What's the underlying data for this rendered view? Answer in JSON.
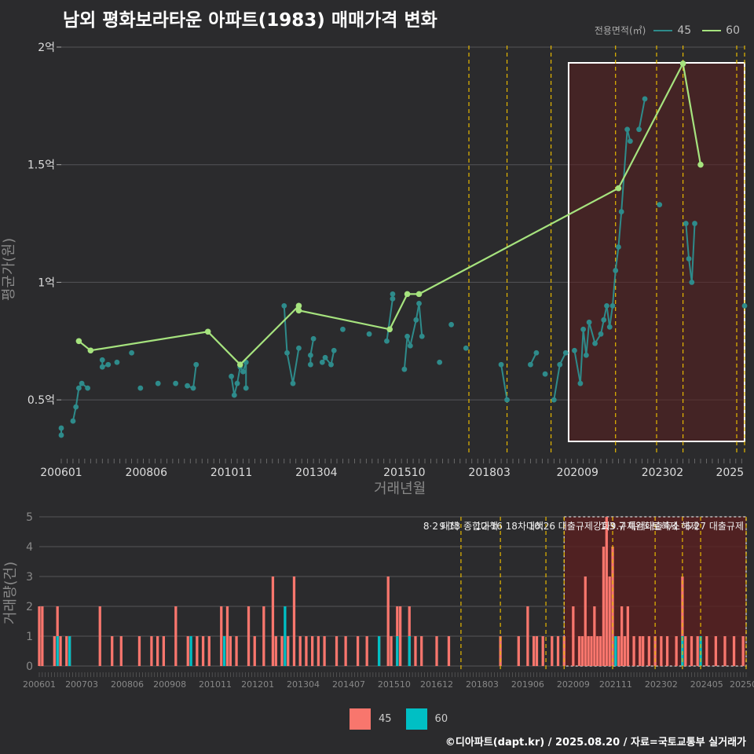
{
  "title": "남외 평화보라타운 아파트(1983) 매매가격 변화",
  "footer": "©디아파트(dapt.kr) / 2025.08.20 / 자료=국토교통부 실거래가",
  "legend": {
    "title": "전용면적(㎡)",
    "items": [
      {
        "label": "45",
        "color": "#2e8b8b"
      },
      {
        "label": "60",
        "color": "#a6e37e"
      }
    ]
  },
  "volume_legend": [
    {
      "label": "45",
      "color": "#f8766d"
    },
    {
      "label": "60",
      "color": "#00bfc4"
    }
  ],
  "colors": {
    "s45_line": "#2e8b8b",
    "s60": "#a6e37e",
    "bar45": "#f8766d",
    "bar60": "#00bfc4",
    "policy_line": "#e6b800",
    "highlight": "#5a1f1f"
  },
  "chart_data": [
    {
      "type": "line",
      "title": "남외 평화보라타운 아파트(1983) 매매가격 변화",
      "xlabel": "거래년월",
      "ylabel": "평균가(원)",
      "x_range": [
        "2006-01",
        "2025-06"
      ],
      "ylim": [
        0.27,
        2.05
      ],
      "x_ticks": [
        "200601",
        "200806",
        "201011",
        "201304",
        "201510",
        "201803",
        "202009",
        "202302",
        "2025"
      ],
      "y_ticks": [
        {
          "v": 0.5,
          "label": "0.5억"
        },
        {
          "v": 1,
          "label": "1억"
        },
        {
          "v": 1.5,
          "label": "1.5억"
        },
        {
          "v": 2,
          "label": "2억"
        }
      ],
      "policy_dates": [
        "2017-08",
        "2018-09",
        "2019-12",
        "2021-10",
        "2022-12",
        "2023-09",
        "2025-06",
        "2025-06"
      ],
      "highlight_range": [
        "2020-06",
        "2025-06"
      ],
      "series": [
        {
          "name": "45",
          "points": [
            [
              "2006-01",
              0.35
            ],
            [
              "2006-01",
              0.38
            ],
            [
              "2006-05",
              0.41
            ],
            [
              "2006-06",
              0.47
            ],
            [
              "2006-07",
              0.55
            ],
            [
              "2006-08",
              0.57
            ],
            [
              "2006-10",
              0.55
            ],
            [
              "2007-03",
              0.67
            ],
            [
              "2007-03",
              0.64
            ],
            [
              "2007-05",
              0.65
            ],
            [
              "2007-08",
              0.66
            ],
            [
              "2008-01",
              0.7
            ],
            [
              "2008-04",
              0.55
            ],
            [
              "2008-10",
              0.57
            ],
            [
              "2009-04",
              0.57
            ],
            [
              "2009-08",
              0.56
            ],
            [
              "2009-10",
              0.55
            ],
            [
              "2009-11",
              0.65
            ],
            [
              "2010-11",
              0.6
            ],
            [
              "2010-12",
              0.52
            ],
            [
              "2011-01",
              0.57
            ],
            [
              "2011-02",
              0.64
            ],
            [
              "2011-03",
              0.62
            ],
            [
              "2011-04",
              0.66
            ],
            [
              "2011-04",
              0.55
            ],
            [
              "2012-05",
              0.9
            ],
            [
              "2012-06",
              0.7
            ],
            [
              "2012-08",
              0.57
            ],
            [
              "2012-10",
              0.72
            ],
            [
              "2013-02",
              0.65
            ],
            [
              "2013-02",
              0.69
            ],
            [
              "2013-03",
              0.76
            ],
            [
              "2013-06",
              0.66
            ],
            [
              "2013-07",
              0.68
            ],
            [
              "2013-09",
              0.65
            ],
            [
              "2013-10",
              0.71
            ],
            [
              "2014-01",
              0.8
            ],
            [
              "2014-10",
              0.78
            ],
            [
              "2015-04",
              0.75
            ],
            [
              "2015-06",
              0.93
            ],
            [
              "2015-06",
              0.95
            ],
            [
              "2015-10",
              0.63
            ],
            [
              "2015-11",
              0.77
            ],
            [
              "2015-12",
              0.73
            ],
            [
              "2016-02",
              0.84
            ],
            [
              "2016-03",
              0.91
            ],
            [
              "2016-04",
              0.77
            ],
            [
              "2016-10",
              0.66
            ],
            [
              "2017-02",
              0.82
            ],
            [
              "2017-07",
              0.72
            ],
            [
              "2018-07",
              0.65
            ],
            [
              "2018-09",
              0.5
            ],
            [
              "2019-05",
              0.65
            ],
            [
              "2019-07",
              0.7
            ],
            [
              "2019-10",
              0.61
            ],
            [
              "2020-01",
              0.5
            ],
            [
              "2020-03",
              0.65
            ],
            [
              "2020-05",
              0.7
            ],
            [
              "2020-08",
              0.71
            ],
            [
              "2020-10",
              0.57
            ],
            [
              "2020-11",
              0.8
            ],
            [
              "2020-12",
              0.69
            ],
            [
              "2021-01",
              0.83
            ],
            [
              "2021-03",
              0.74
            ],
            [
              "2021-05",
              0.78
            ],
            [
              "2021-06",
              0.84
            ],
            [
              "2021-07",
              0.9
            ],
            [
              "2021-08",
              0.81
            ],
            [
              "2021-09",
              0.9
            ],
            [
              "2021-10",
              1.05
            ],
            [
              "2021-11",
              1.15
            ],
            [
              "2021-12",
              1.3
            ],
            [
              "2022-02",
              1.65
            ],
            [
              "2022-03",
              1.6
            ],
            [
              "2022-06",
              1.65
            ],
            [
              "2022-08",
              1.78
            ],
            [
              "2023-01",
              1.33
            ],
            [
              "2023-10",
              1.25
            ],
            [
              "2023-11",
              1.1
            ],
            [
              "2023-12",
              1.0
            ],
            [
              "2024-01",
              1.25
            ],
            [
              "2025-06",
              0.9
            ]
          ]
        },
        {
          "name": "60",
          "points": [
            [
              "2006-07",
              0.75
            ],
            [
              "2006-11",
              0.71
            ],
            [
              "2010-03",
              0.79
            ],
            [
              "2011-02",
              0.65
            ],
            [
              "2012-10",
              0.9
            ],
            [
              "2012-10",
              0.88
            ],
            [
              "2015-05",
              0.8
            ],
            [
              "2015-11",
              0.95
            ],
            [
              "2016-03",
              0.95
            ],
            [
              "2021-11",
              1.4
            ],
            [
              "2023-09",
              1.93
            ],
            [
              "2024-03",
              1.5
            ]
          ]
        }
      ]
    },
    {
      "type": "bar",
      "title": "",
      "xlabel": "",
      "ylabel": "거래량(건)",
      "ylim": [
        0,
        5
      ],
      "y_ticks": [
        0,
        1,
        2,
        3,
        4,
        5
      ],
      "x_ticks": [
        "200601",
        "200703",
        "200806",
        "200908",
        "201011",
        "201201",
        "201304",
        "201407",
        "201510",
        "201612",
        "201803",
        "201906",
        "202009",
        "202111",
        "202302",
        "202405",
        "202506"
      ],
      "highlight_range": [
        "2020-06",
        "2025-06"
      ],
      "policy_events": [
        {
          "date": "2017-08",
          "label": "8·2 대책"
        },
        {
          "date": "2018-09",
          "label": "9·13 종합대책"
        },
        {
          "date": "2019-12",
          "label": "12·16 18차대책"
        },
        {
          "date": "2020-06",
          "label": ""
        },
        {
          "date": "2021-10",
          "label": "10.26 대출규제강화"
        },
        {
          "date": "2022-12",
          "label": "1.3 규제완화"
        },
        {
          "date": "2023-09",
          "label": "9.7 특례대출축소"
        },
        {
          "date": "2024-03",
          "label": "토허제 해제"
        },
        {
          "date": "2025-06",
          "label": "6.27 대출규제"
        }
      ],
      "series": [
        {
          "name": "45",
          "values": [
            [
              "2006-01",
              2
            ],
            [
              "2006-02",
              2
            ],
            [
              "2006-06",
              1
            ],
            [
              "2006-07",
              2
            ],
            [
              "2006-08",
              1
            ],
            [
              "2006-10",
              1
            ],
            [
              "2006-11",
              1
            ],
            [
              "2007-09",
              2
            ],
            [
              "2008-01",
              1
            ],
            [
              "2008-04",
              1
            ],
            [
              "2008-10",
              1
            ],
            [
              "2009-02",
              1
            ],
            [
              "2009-04",
              1
            ],
            [
              "2009-06",
              1
            ],
            [
              "2009-10",
              2
            ],
            [
              "2010-02",
              1
            ],
            [
              "2010-05",
              1
            ],
            [
              "2010-07",
              1
            ],
            [
              "2010-09",
              1
            ],
            [
              "2011-01",
              2
            ],
            [
              "2011-03",
              2
            ],
            [
              "2011-04",
              1
            ],
            [
              "2011-06",
              1
            ],
            [
              "2011-10",
              2
            ],
            [
              "2011-12",
              1
            ],
            [
              "2012-03",
              2
            ],
            [
              "2012-06",
              3
            ],
            [
              "2012-07",
              1
            ],
            [
              "2012-09",
              1
            ],
            [
              "2012-11",
              1
            ],
            [
              "2013-01",
              3
            ],
            [
              "2013-03",
              1
            ],
            [
              "2013-05",
              1
            ],
            [
              "2013-07",
              1
            ],
            [
              "2013-09",
              1
            ],
            [
              "2013-11",
              1
            ],
            [
              "2014-03",
              1
            ],
            [
              "2014-06",
              1
            ],
            [
              "2014-10",
              1
            ],
            [
              "2015-01",
              1
            ],
            [
              "2015-05",
              1
            ],
            [
              "2015-08",
              3
            ],
            [
              "2015-09",
              1
            ],
            [
              "2015-11",
              2
            ],
            [
              "2015-12",
              2
            ],
            [
              "2016-03",
              2
            ],
            [
              "2016-05",
              1
            ],
            [
              "2016-07",
              1
            ],
            [
              "2016-12",
              1
            ],
            [
              "2017-04",
              1
            ],
            [
              "2018-09",
              1
            ],
            [
              "2019-03",
              1
            ],
            [
              "2019-06",
              2
            ],
            [
              "2019-08",
              1
            ],
            [
              "2019-09",
              1
            ],
            [
              "2019-11",
              1
            ],
            [
              "2020-02",
              1
            ],
            [
              "2020-04",
              1
            ],
            [
              "2020-06",
              1
            ],
            [
              "2020-09",
              2
            ],
            [
              "2020-11",
              1
            ],
            [
              "2020-12",
              1
            ],
            [
              "2021-01",
              3
            ],
            [
              "2021-02",
              1
            ],
            [
              "2021-03",
              1
            ],
            [
              "2021-04",
              2
            ],
            [
              "2021-05",
              1
            ],
            [
              "2021-06",
              1
            ],
            [
              "2021-07",
              4
            ],
            [
              "2021-08",
              5
            ],
            [
              "2021-09",
              3
            ],
            [
              "2021-10",
              4
            ],
            [
              "2021-11",
              1
            ],
            [
              "2021-12",
              1
            ],
            [
              "2022-01",
              2
            ],
            [
              "2022-02",
              1
            ],
            [
              "2022-03",
              2
            ],
            [
              "2022-05",
              1
            ],
            [
              "2022-07",
              1
            ],
            [
              "2022-08",
              1
            ],
            [
              "2022-10",
              1
            ],
            [
              "2022-12",
              1
            ],
            [
              "2023-02",
              1
            ],
            [
              "2023-04",
              1
            ],
            [
              "2023-07",
              1
            ],
            [
              "2023-09",
              3
            ],
            [
              "2023-10",
              1
            ],
            [
              "2023-12",
              1
            ],
            [
              "2024-02",
              1
            ],
            [
              "2024-05",
              1
            ],
            [
              "2024-08",
              1
            ],
            [
              "2024-11",
              1
            ],
            [
              "2025-02",
              1
            ],
            [
              "2025-05",
              1
            ]
          ]
        },
        {
          "name": "60",
          "values": [
            [
              "2006-07",
              1
            ],
            [
              "2006-11",
              1
            ],
            [
              "2010-03",
              1
            ],
            [
              "2011-02",
              1
            ],
            [
              "2012-10",
              2
            ],
            [
              "2015-05",
              1
            ],
            [
              "2015-11",
              1
            ],
            [
              "2016-03",
              1
            ],
            [
              "2021-11",
              1
            ],
            [
              "2023-09",
              1
            ],
            [
              "2024-03",
              1
            ]
          ]
        }
      ]
    }
  ]
}
